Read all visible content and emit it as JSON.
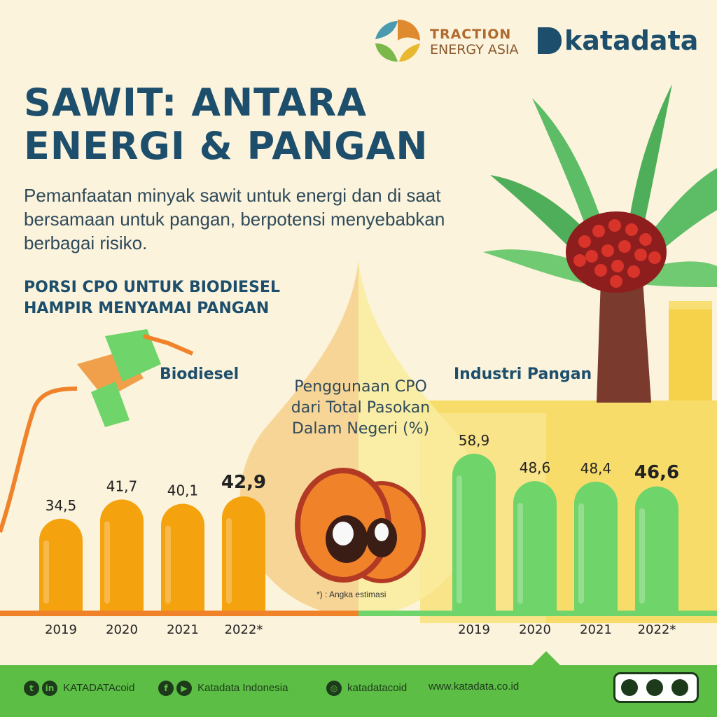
{
  "brand": {
    "traction_line1": "TRACTION",
    "traction_line2": "ENERGY ASIA",
    "katadata": "katadata"
  },
  "title_line1": "SAWIT: ANTARA",
  "title_line2": "ENERGI & PANGAN",
  "subtitle": "Pemanfaatan minyak sawit untuk energi dan di saat bersamaan untuk pangan, berpotensi menyebabkan berbagai risiko.",
  "section_line1": "PORSI CPO UNTUK BIODIESEL",
  "section_line2": "HAMPIR MENYAMAI PANGAN",
  "center_label": "Penggunaan CPO dari Total Pasokan Dalam Negeri (%)",
  "footnote": "*) : Angka estimasi",
  "colors": {
    "biodiesel": "#f5a20f",
    "pangan": "#6fd46a",
    "title": "#1d4e6b",
    "footer": "#5cbe45"
  },
  "chart_data": [
    {
      "type": "bar",
      "name": "Biodiesel",
      "categories": [
        "2019",
        "2020",
        "2021",
        "2022*"
      ],
      "values": [
        34.5,
        41.7,
        40.1,
        42.9
      ],
      "value_labels": [
        "34,5",
        "41,7",
        "40,1",
        "42,9"
      ],
      "ylim": [
        0,
        60
      ],
      "grid": false,
      "color": "#f5a20f"
    },
    {
      "type": "bar",
      "name": "Industri Pangan",
      "categories": [
        "2019",
        "2020",
        "2021",
        "2022*"
      ],
      "values": [
        58.9,
        48.6,
        48.4,
        46.6
      ],
      "value_labels": [
        "58,9",
        "48,6",
        "48,4",
        "46,6"
      ],
      "ylim": [
        0,
        60
      ],
      "grid": false,
      "color": "#6fd46a"
    }
  ],
  "footer": {
    "social1": "KATADATAcoid",
    "social2": "Katadata Indonesia",
    "social3": "katadatacoid",
    "website": "www.katadata.co.id",
    "icons": [
      "twitter-icon",
      "linkedin-icon",
      "facebook-icon",
      "youtube-icon",
      "instagram-icon",
      "creative-commons-icon"
    ]
  }
}
